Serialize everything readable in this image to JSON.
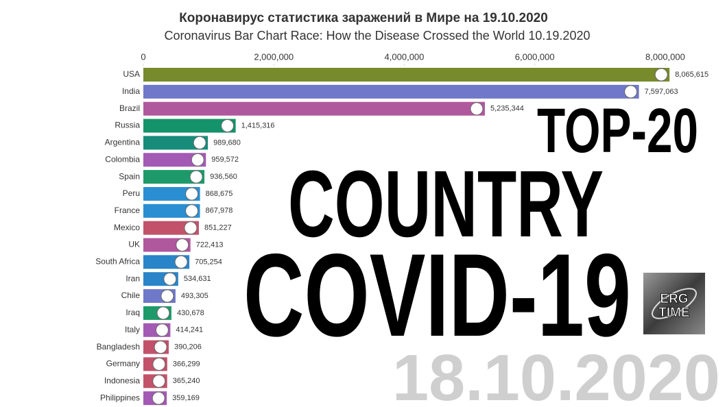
{
  "chart_data": {
    "type": "bar",
    "orientation": "horizontal",
    "title": "Коронавирус статистика заражений в Мире на 19.10.2020",
    "subtitle": "Coronavirus Bar Chart Race: How the Disease Crossed the World 10.19.2020",
    "categories": [
      "USA",
      "India",
      "Brazil",
      "Russia",
      "Argentina",
      "Colombia",
      "Spain",
      "Peru",
      "France",
      "Mexico",
      "UK",
      "South Africa",
      "Iran",
      "Chile",
      "Iraq",
      "Italy",
      "Bangladesh",
      "Germany",
      "Indonesia",
      "Philippines"
    ],
    "values": [
      8065615,
      7597063,
      5235344,
      1415316,
      989680,
      959572,
      936560,
      868675,
      867978,
      851227,
      722413,
      705254,
      534631,
      493305,
      430678,
      414241,
      390206,
      366299,
      365240,
      359169
    ],
    "value_labels": [
      "8,065,615",
      "7,597,063",
      "5,235,344",
      "1,415,316",
      "989,680",
      "959,572",
      "936,560",
      "868,675",
      "867,978",
      "851,227",
      "722,413",
      "705,254",
      "534,631",
      "493,305",
      "430,678",
      "414,241",
      "390,206",
      "366,299",
      "365,240",
      "359,169"
    ],
    "colors": [
      "#778a2c",
      "#6f78c9",
      "#b0589e",
      "#14936a",
      "#178c7b",
      "#a35ab4",
      "#1e9a6a",
      "#2a8ed2",
      "#2a8ed2",
      "#c2526a",
      "#b0589e",
      "#2a84c8",
      "#2a84c8",
      "#6f78c9",
      "#1e9a6a",
      "#a35ab4",
      "#c2526a",
      "#c2526a",
      "#c2526a",
      "#a35ab4"
    ],
    "xlim": [
      0,
      8400000
    ],
    "xticks": [
      0,
      {
        "value": 2000000,
        "label": "2,000,000"
      },
      {
        "value": 4000000,
        "label": "4,000,000"
      },
      {
        "value": 6000000,
        "label": "6,000,000"
      },
      {
        "value": 8000000,
        "label": "8,000,000"
      }
    ],
    "overlay": {
      "top": "TOP-20",
      "country": "COUNTRY",
      "covid": "COVID-19",
      "date": "18.10.2020",
      "logo_line1": "ERG",
      "logo_line2": "TIME"
    }
  }
}
